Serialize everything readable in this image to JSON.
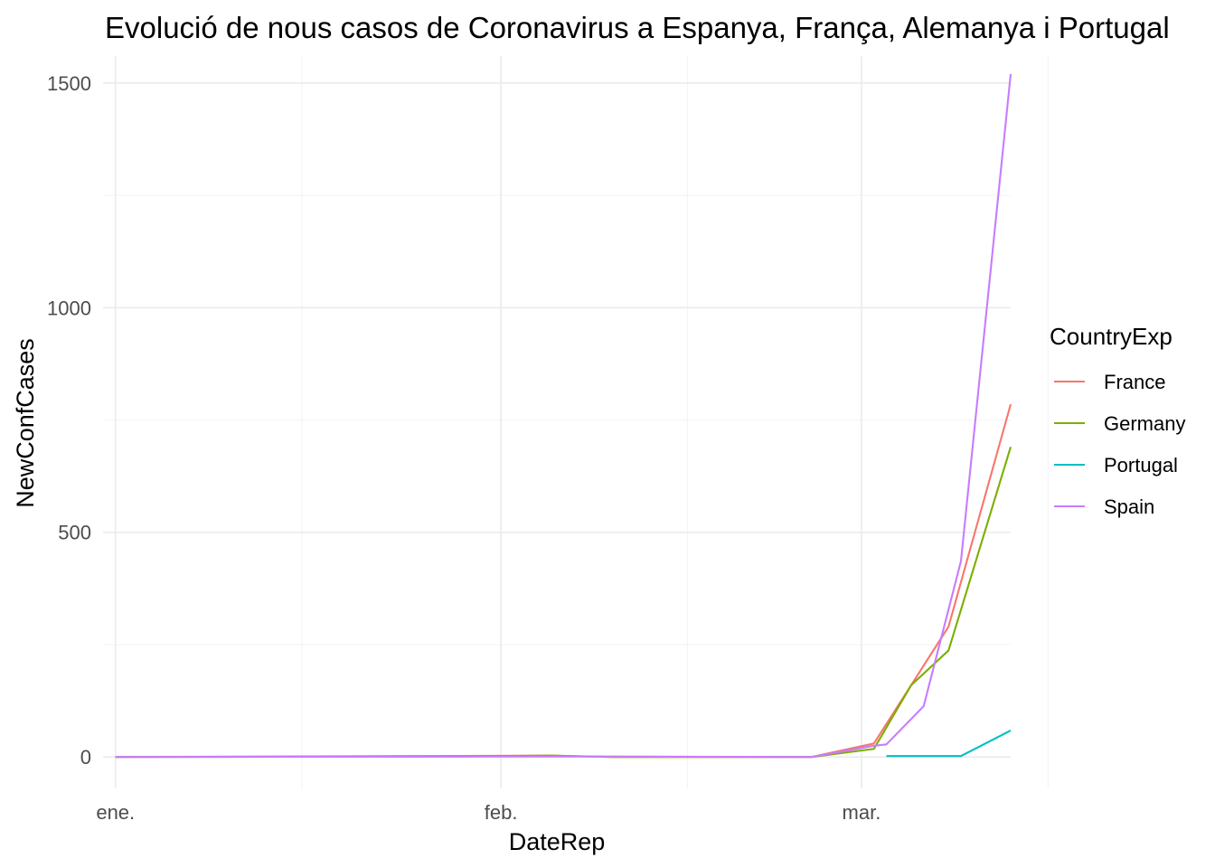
{
  "chart_data": {
    "type": "line",
    "title": "Evolució de nous casos de Coronavirus a Espanya, França, Alemanya i Portugal",
    "xlabel": "DateRep",
    "ylabel": "NewConfCases",
    "x_type": "date",
    "xlim": [
      "2019-12-31",
      "2020-03-13"
    ],
    "ylim": [
      -70,
      1560
    ],
    "x_ticks": [
      {
        "date": "2020-01-01",
        "label": "ene."
      },
      {
        "date": "2020-02-01",
        "label": "feb."
      },
      {
        "date": "2020-03-01",
        "label": "mar."
      }
    ],
    "x_minor_ticks": [
      "2020-01-16",
      "2020-02-16",
      "2020-03-16"
    ],
    "y_ticks": [
      {
        "value": 0,
        "label": "0"
      },
      {
        "value": 500,
        "label": "500"
      },
      {
        "value": 1000,
        "label": "1000"
      },
      {
        "value": 1500,
        "label": "1500"
      }
    ],
    "y_minor_ticks": [
      250,
      750,
      1250
    ],
    "grid": true,
    "legend": {
      "title": "CountryExp",
      "position": "right"
    },
    "series": [
      {
        "name": "France",
        "color": "#F8766D",
        "points": [
          {
            "x": "2020-01-01",
            "y": 0
          },
          {
            "x": "2020-01-24",
            "y": 2
          },
          {
            "x": "2020-02-05",
            "y": 3
          },
          {
            "x": "2020-02-10",
            "y": 0
          },
          {
            "x": "2020-02-26",
            "y": 0
          },
          {
            "x": "2020-03-02",
            "y": 30
          },
          {
            "x": "2020-03-05",
            "y": 160
          },
          {
            "x": "2020-03-08",
            "y": 290
          },
          {
            "x": "2020-03-13",
            "y": 785
          }
        ]
      },
      {
        "name": "Germany",
        "color": "#7CAE00",
        "points": [
          {
            "x": "2020-01-01",
            "y": 0
          },
          {
            "x": "2020-01-28",
            "y": 1
          },
          {
            "x": "2020-02-05",
            "y": 3
          },
          {
            "x": "2020-02-10",
            "y": 0
          },
          {
            "x": "2020-02-26",
            "y": 0
          },
          {
            "x": "2020-03-02",
            "y": 18
          },
          {
            "x": "2020-03-05",
            "y": 160
          },
          {
            "x": "2020-03-08",
            "y": 237
          },
          {
            "x": "2020-03-13",
            "y": 690
          }
        ]
      },
      {
        "name": "Portugal",
        "color": "#00BFC4",
        "points": [
          {
            "x": "2020-03-03",
            "y": 2
          },
          {
            "x": "2020-03-06",
            "y": 2
          },
          {
            "x": "2020-03-09",
            "y": 2
          },
          {
            "x": "2020-03-13",
            "y": 59
          }
        ]
      },
      {
        "name": "Spain",
        "color": "#C77CFF",
        "points": [
          {
            "x": "2020-01-01",
            "y": 0
          },
          {
            "x": "2020-02-01",
            "y": 1
          },
          {
            "x": "2020-02-10",
            "y": 1
          },
          {
            "x": "2020-02-26",
            "y": 0
          },
          {
            "x": "2020-03-02",
            "y": 25
          },
          {
            "x": "2020-03-03",
            "y": 28
          },
          {
            "x": "2020-03-06",
            "y": 113
          },
          {
            "x": "2020-03-09",
            "y": 436
          },
          {
            "x": "2020-03-13",
            "y": 1520
          }
        ]
      }
    ]
  }
}
